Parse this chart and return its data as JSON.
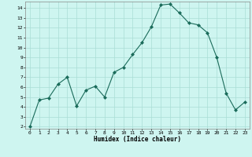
{
  "x": [
    0,
    1,
    2,
    3,
    4,
    5,
    6,
    7,
    8,
    9,
    10,
    11,
    12,
    13,
    14,
    15,
    16,
    17,
    18,
    19,
    20,
    21,
    22,
    23
  ],
  "y": [
    2,
    4.7,
    4.9,
    6.3,
    7.0,
    4.1,
    5.7,
    6.1,
    5.0,
    7.5,
    8.0,
    9.3,
    10.5,
    12.1,
    14.3,
    14.4,
    13.5,
    12.5,
    12.3,
    11.5,
    9.0,
    5.4,
    3.7,
    4.5
  ],
  "xlabel": "Humidex (Indice chaleur)",
  "line_color": "#1a6b5a",
  "marker": "D",
  "bg_color": "#cef5f0",
  "grid_color": "#aaddd5",
  "xlim": [
    -0.5,
    23.5
  ],
  "ylim": [
    1.8,
    14.65
  ],
  "yticks": [
    2,
    3,
    4,
    5,
    6,
    7,
    8,
    9,
    10,
    11,
    12,
    13,
    14
  ],
  "xticks": [
    0,
    1,
    2,
    3,
    4,
    5,
    6,
    7,
    8,
    9,
    10,
    11,
    12,
    13,
    14,
    15,
    16,
    17,
    18,
    19,
    20,
    21,
    22,
    23
  ],
  "figsize": [
    3.2,
    2.0
  ],
  "dpi": 100
}
